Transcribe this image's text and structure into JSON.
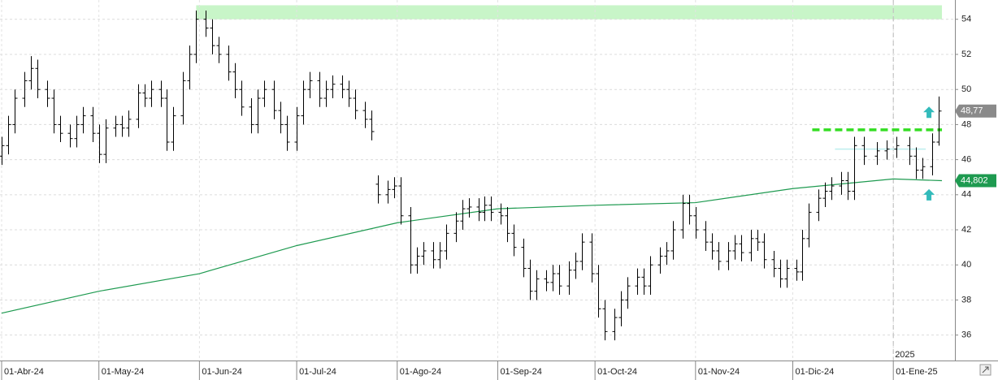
{
  "chart_data": {
    "type": "ohlc",
    "color": "#000000",
    "x": [
      "2024-04-01",
      "2024-04-03",
      "2024-04-05",
      "2024-04-08",
      "2024-04-10",
      "2024-04-12",
      "2024-04-15",
      "2024-04-17",
      "2024-04-19",
      "2024-04-22",
      "2024-04-24",
      "2024-04-26",
      "2024-04-29",
      "2024-05-01",
      "2024-05-03",
      "2024-05-06",
      "2024-05-08",
      "2024-05-10",
      "2024-05-13",
      "2024-05-15",
      "2024-05-17",
      "2024-05-20",
      "2024-05-22",
      "2024-05-24",
      "2024-05-27",
      "2024-05-29",
      "2024-05-31",
      "2024-06-03",
      "2024-06-05",
      "2024-06-07",
      "2024-06-10",
      "2024-06-12",
      "2024-06-14",
      "2024-06-17",
      "2024-06-19",
      "2024-06-21",
      "2024-06-24",
      "2024-06-26",
      "2024-06-28",
      "2024-07-01",
      "2024-07-03",
      "2024-07-05",
      "2024-07-08",
      "2024-07-10",
      "2024-07-12",
      "2024-07-15",
      "2024-07-17",
      "2024-07-19",
      "2024-07-22",
      "2024-07-24",
      "2024-07-26",
      "2024-07-29",
      "2024-07-31",
      "2024-08-02",
      "2024-08-05",
      "2024-08-07",
      "2024-08-09",
      "2024-08-12",
      "2024-08-14",
      "2024-08-16",
      "2024-08-19",
      "2024-08-21",
      "2024-08-23",
      "2024-08-26",
      "2024-08-28",
      "2024-08-30",
      "2024-09-02",
      "2024-09-04",
      "2024-09-06",
      "2024-09-09",
      "2024-09-11",
      "2024-09-13",
      "2024-09-16",
      "2024-09-18",
      "2024-09-20",
      "2024-09-23",
      "2024-09-25",
      "2024-09-27",
      "2024-09-30",
      "2024-10-02",
      "2024-10-04",
      "2024-10-07",
      "2024-10-09",
      "2024-10-11",
      "2024-10-14",
      "2024-10-16",
      "2024-10-18",
      "2024-10-21",
      "2024-10-23",
      "2024-10-25",
      "2024-10-28",
      "2024-10-30",
      "2024-11-01",
      "2024-11-04",
      "2024-11-06",
      "2024-11-08",
      "2024-11-11",
      "2024-11-13",
      "2024-11-15",
      "2024-11-18",
      "2024-11-20",
      "2024-11-22",
      "2024-11-25",
      "2024-11-27",
      "2024-11-29",
      "2024-12-02",
      "2024-12-04",
      "2024-12-06",
      "2024-12-09",
      "2024-12-11",
      "2024-12-13",
      "2024-12-16",
      "2024-12-18",
      "2024-12-20",
      "2024-12-23",
      "2024-12-27",
      "2024-12-30",
      "2025-01-02",
      "2025-01-06",
      "2025-01-08",
      "2025-01-10",
      "2025-01-13",
      "2025-01-15"
    ],
    "open": [
      46.2,
      46.8,
      48,
      49.5,
      50.5,
      51.2,
      50,
      49.5,
      48,
      47.5,
      47.2,
      48,
      48.5,
      47.5,
      46.3,
      47.8,
      48,
      47.8,
      48.3,
      49.8,
      49.5,
      50,
      49.5,
      47,
      48.5,
      50.5,
      52,
      54,
      53.5,
      52.5,
      52,
      51,
      50,
      49,
      48,
      49.5,
      50,
      48.8,
      48,
      47,
      48.5,
      50,
      50.5,
      49.5,
      50,
      50.3,
      50,
      49.5,
      48.8,
      48.3,
      44.6,
      44,
      44.3,
      44.5,
      42.8,
      40,
      40.5,
      40.8,
      40.3,
      40.8,
      41.8,
      42.5,
      43.2,
      43.3,
      43,
      43.4,
      43,
      42.8,
      41.8,
      41,
      39.8,
      38.5,
      39.2,
      39,
      39.5,
      38.8,
      39.7,
      40.2,
      41.3,
      39.5,
      37.5,
      36.2,
      37,
      38,
      38.8,
      39.3,
      38.8,
      40,
      40.5,
      40.8,
      42,
      43.5,
      42.8,
      42,
      41.3,
      40.8,
      40.2,
      40.8,
      41.2,
      40.7,
      41.5,
      41.3,
      40.3,
      39.8,
      39.2,
      39.8,
      39.6,
      41.5,
      43,
      43.8,
      44.2,
      44.5,
      44.8,
      44.2,
      46.8,
      46.2,
      46.5,
      46.6,
      46.8,
      46.2,
      45.4,
      45.6,
      47
    ],
    "high": [
      47.3,
      48.5,
      50,
      51,
      51.9,
      51.7,
      50.5,
      50,
      48.5,
      48,
      48.5,
      49,
      49,
      48,
      48.3,
      48.5,
      48.5,
      48.8,
      50.3,
      50.3,
      50.5,
      50.5,
      50,
      49,
      51,
      52.5,
      54.5,
      54.5,
      54,
      53,
      52.5,
      51.5,
      50.5,
      49.5,
      50,
      50.5,
      50.5,
      49.3,
      48.5,
      49,
      50.5,
      51,
      51,
      50.5,
      50.8,
      50.8,
      50.5,
      50,
      49.3,
      48.8,
      45.1,
      44.8,
      45,
      45,
      43.3,
      41,
      41.3,
      41.3,
      41.3,
      42.3,
      43,
      43.7,
      43.8,
      43.8,
      43.9,
      43.9,
      43.5,
      43.3,
      42.3,
      41.5,
      40.3,
      39.7,
      39.7,
      40,
      40,
      40.2,
      40.7,
      41.8,
      41.8,
      40,
      38,
      37.5,
      38.5,
      39.3,
      39.8,
      39.8,
      40.5,
      41,
      41.3,
      42.5,
      44,
      44,
      43.3,
      42.5,
      41.8,
      41.3,
      41.3,
      41.7,
      41.7,
      42,
      42,
      41.8,
      40.8,
      40.3,
      40.3,
      40.3,
      42,
      43.5,
      44.3,
      44.7,
      45,
      45.3,
      45.3,
      47.3,
      47.3,
      47,
      47.1,
      47.3,
      47.3,
      46.7,
      46.1,
      47.5,
      49.6
    ],
    "low": [
      45.7,
      46.3,
      47.5,
      49,
      50,
      49.5,
      49,
      47.5,
      47,
      46.7,
      46.7,
      47.5,
      47,
      45.8,
      45.8,
      47.3,
      47.3,
      47.3,
      47.8,
      49,
      49,
      49,
      46.5,
      46.5,
      48,
      50,
      51.5,
      53,
      52,
      51.5,
      50.5,
      49.5,
      48.5,
      47.5,
      47.5,
      49,
      48.3,
      47.5,
      46.5,
      46.5,
      48,
      49.5,
      49,
      49,
      49.5,
      49.5,
      49,
      48.3,
      47.8,
      47.1,
      43.5,
      43.5,
      43.8,
      42.3,
      39.5,
      39.5,
      40,
      39.8,
      39.8,
      40.3,
      41.3,
      42,
      42.7,
      42.5,
      42.5,
      42.5,
      42.3,
      41.3,
      40.5,
      39.3,
      38,
      38,
      38.5,
      38.5,
      38.3,
      38.3,
      39.2,
      39.7,
      39,
      37,
      35.7,
      35.7,
      36.5,
      37.5,
      38.3,
      38.3,
      38.3,
      39.5,
      40,
      40.3,
      41.5,
      42.3,
      41.5,
      40.8,
      40.3,
      39.7,
      39.7,
      40.3,
      40.2,
      40.2,
      40.8,
      39.8,
      39.3,
      38.7,
      38.7,
      39.1,
      39.1,
      41,
      42.5,
      43.3,
      43.7,
      44,
      43.7,
      43.7,
      45.7,
      45.7,
      46,
      46.1,
      45.7,
      44.9,
      44.9,
      45.1,
      46.8
    ],
    "close": [
      46.8,
      48,
      49.5,
      50.5,
      51.2,
      50,
      49.5,
      48,
      47.5,
      47.2,
      48,
      48.5,
      47.5,
      46.3,
      47.8,
      48,
      47.8,
      48.3,
      49.8,
      49.5,
      50,
      49.5,
      47,
      48.5,
      50.5,
      52,
      54,
      53.5,
      52.5,
      52,
      51,
      50,
      49,
      48,
      49.5,
      50,
      48.8,
      48,
      47,
      48.5,
      50,
      50.5,
      49.5,
      50,
      50.3,
      50,
      49.5,
      48.8,
      48.3,
      47.6,
      44,
      44.3,
      44.5,
      42.8,
      40,
      40.5,
      40.8,
      40.3,
      40.8,
      41.8,
      42.5,
      43.2,
      43.3,
      43,
      43.4,
      43,
      42.8,
      41.8,
      41,
      39.8,
      38.5,
      39.2,
      39,
      39.5,
      38.8,
      39.7,
      40.2,
      41.3,
      39.5,
      37.5,
      36.2,
      37,
      38,
      38.8,
      39.3,
      38.8,
      40,
      40.5,
      40.8,
      42,
      43.5,
      42.8,
      42,
      41.3,
      40.8,
      40.2,
      40.8,
      41.2,
      40.7,
      41.5,
      41.3,
      40.3,
      39.8,
      39.2,
      39.8,
      39.6,
      41.5,
      43,
      43.8,
      44.2,
      44.5,
      44.8,
      44.2,
      46.8,
      46.2,
      46.5,
      46.6,
      46.8,
      46.2,
      45.4,
      45.6,
      47,
      48.77
    ],
    "moving_average": {
      "color": "#1e9a50",
      "x": [
        "2024-04-01",
        "2024-05-01",
        "2024-06-01",
        "2024-07-01",
        "2024-08-01",
        "2024-09-01",
        "2024-10-01",
        "2024-11-01",
        "2024-12-01",
        "2025-01-01",
        "2025-01-16"
      ],
      "values": [
        37.25,
        38.5,
        39.5,
        41.1,
        42.4,
        43.2,
        43.4,
        43.55,
        44.35,
        44.9,
        44.802
      ]
    },
    "zone": {
      "x": [
        "2024-05-31",
        "2025-01-16"
      ],
      "y": [
        54,
        54.8
      ],
      "color": "#c8f5c8"
    },
    "level_line": {
      "x": [
        "2024-12-07",
        "2025-01-16"
      ],
      "value": 47.7,
      "color": "#33dd22"
    },
    "aux_line": {
      "x": [
        "2024-12-14",
        "2025-01-11"
      ],
      "value": 46.6,
      "color": "#bdeeee"
    },
    "arrows": {
      "x": "2025-01-12",
      "values": [
        48.7,
        44
      ],
      "color": "#33bbbb"
    },
    "price_tags": [
      {
        "value": 48.77,
        "label": "48,77",
        "color": "#8a8a8a"
      },
      {
        "value": 44.802,
        "label": "44,802",
        "color": "#1e9a50"
      }
    ],
    "xlim": [
      "2024-04-01",
      "2025-01-20"
    ],
    "ylim": [
      34.55,
      55.1
    ],
    "yticks": [
      36,
      38,
      40,
      42,
      44,
      46,
      48,
      50,
      52,
      54
    ],
    "xticks": [
      {
        "value": "2024-04-01",
        "label": "01-Abr-24"
      },
      {
        "value": "2024-05-01",
        "label": "01-May-24"
      },
      {
        "value": "2024-06-01",
        "label": "01-Jun-24"
      },
      {
        "value": "2024-07-01",
        "label": "01-Jul-24"
      },
      {
        "value": "2024-08-01",
        "label": "01-Ago-24"
      },
      {
        "value": "2024-09-01",
        "label": "01-Sep-24"
      },
      {
        "value": "2024-10-01",
        "label": "01-Oct-24"
      },
      {
        "value": "2024-11-01",
        "label": "01-Nov-24"
      },
      {
        "value": "2024-12-01",
        "label": "01-Dic-24"
      },
      {
        "value": "2025-01-01",
        "label": "01-Ene-25"
      }
    ],
    "year_marker": {
      "value": "2025-01-01",
      "label": "2025"
    },
    "grid": true
  }
}
